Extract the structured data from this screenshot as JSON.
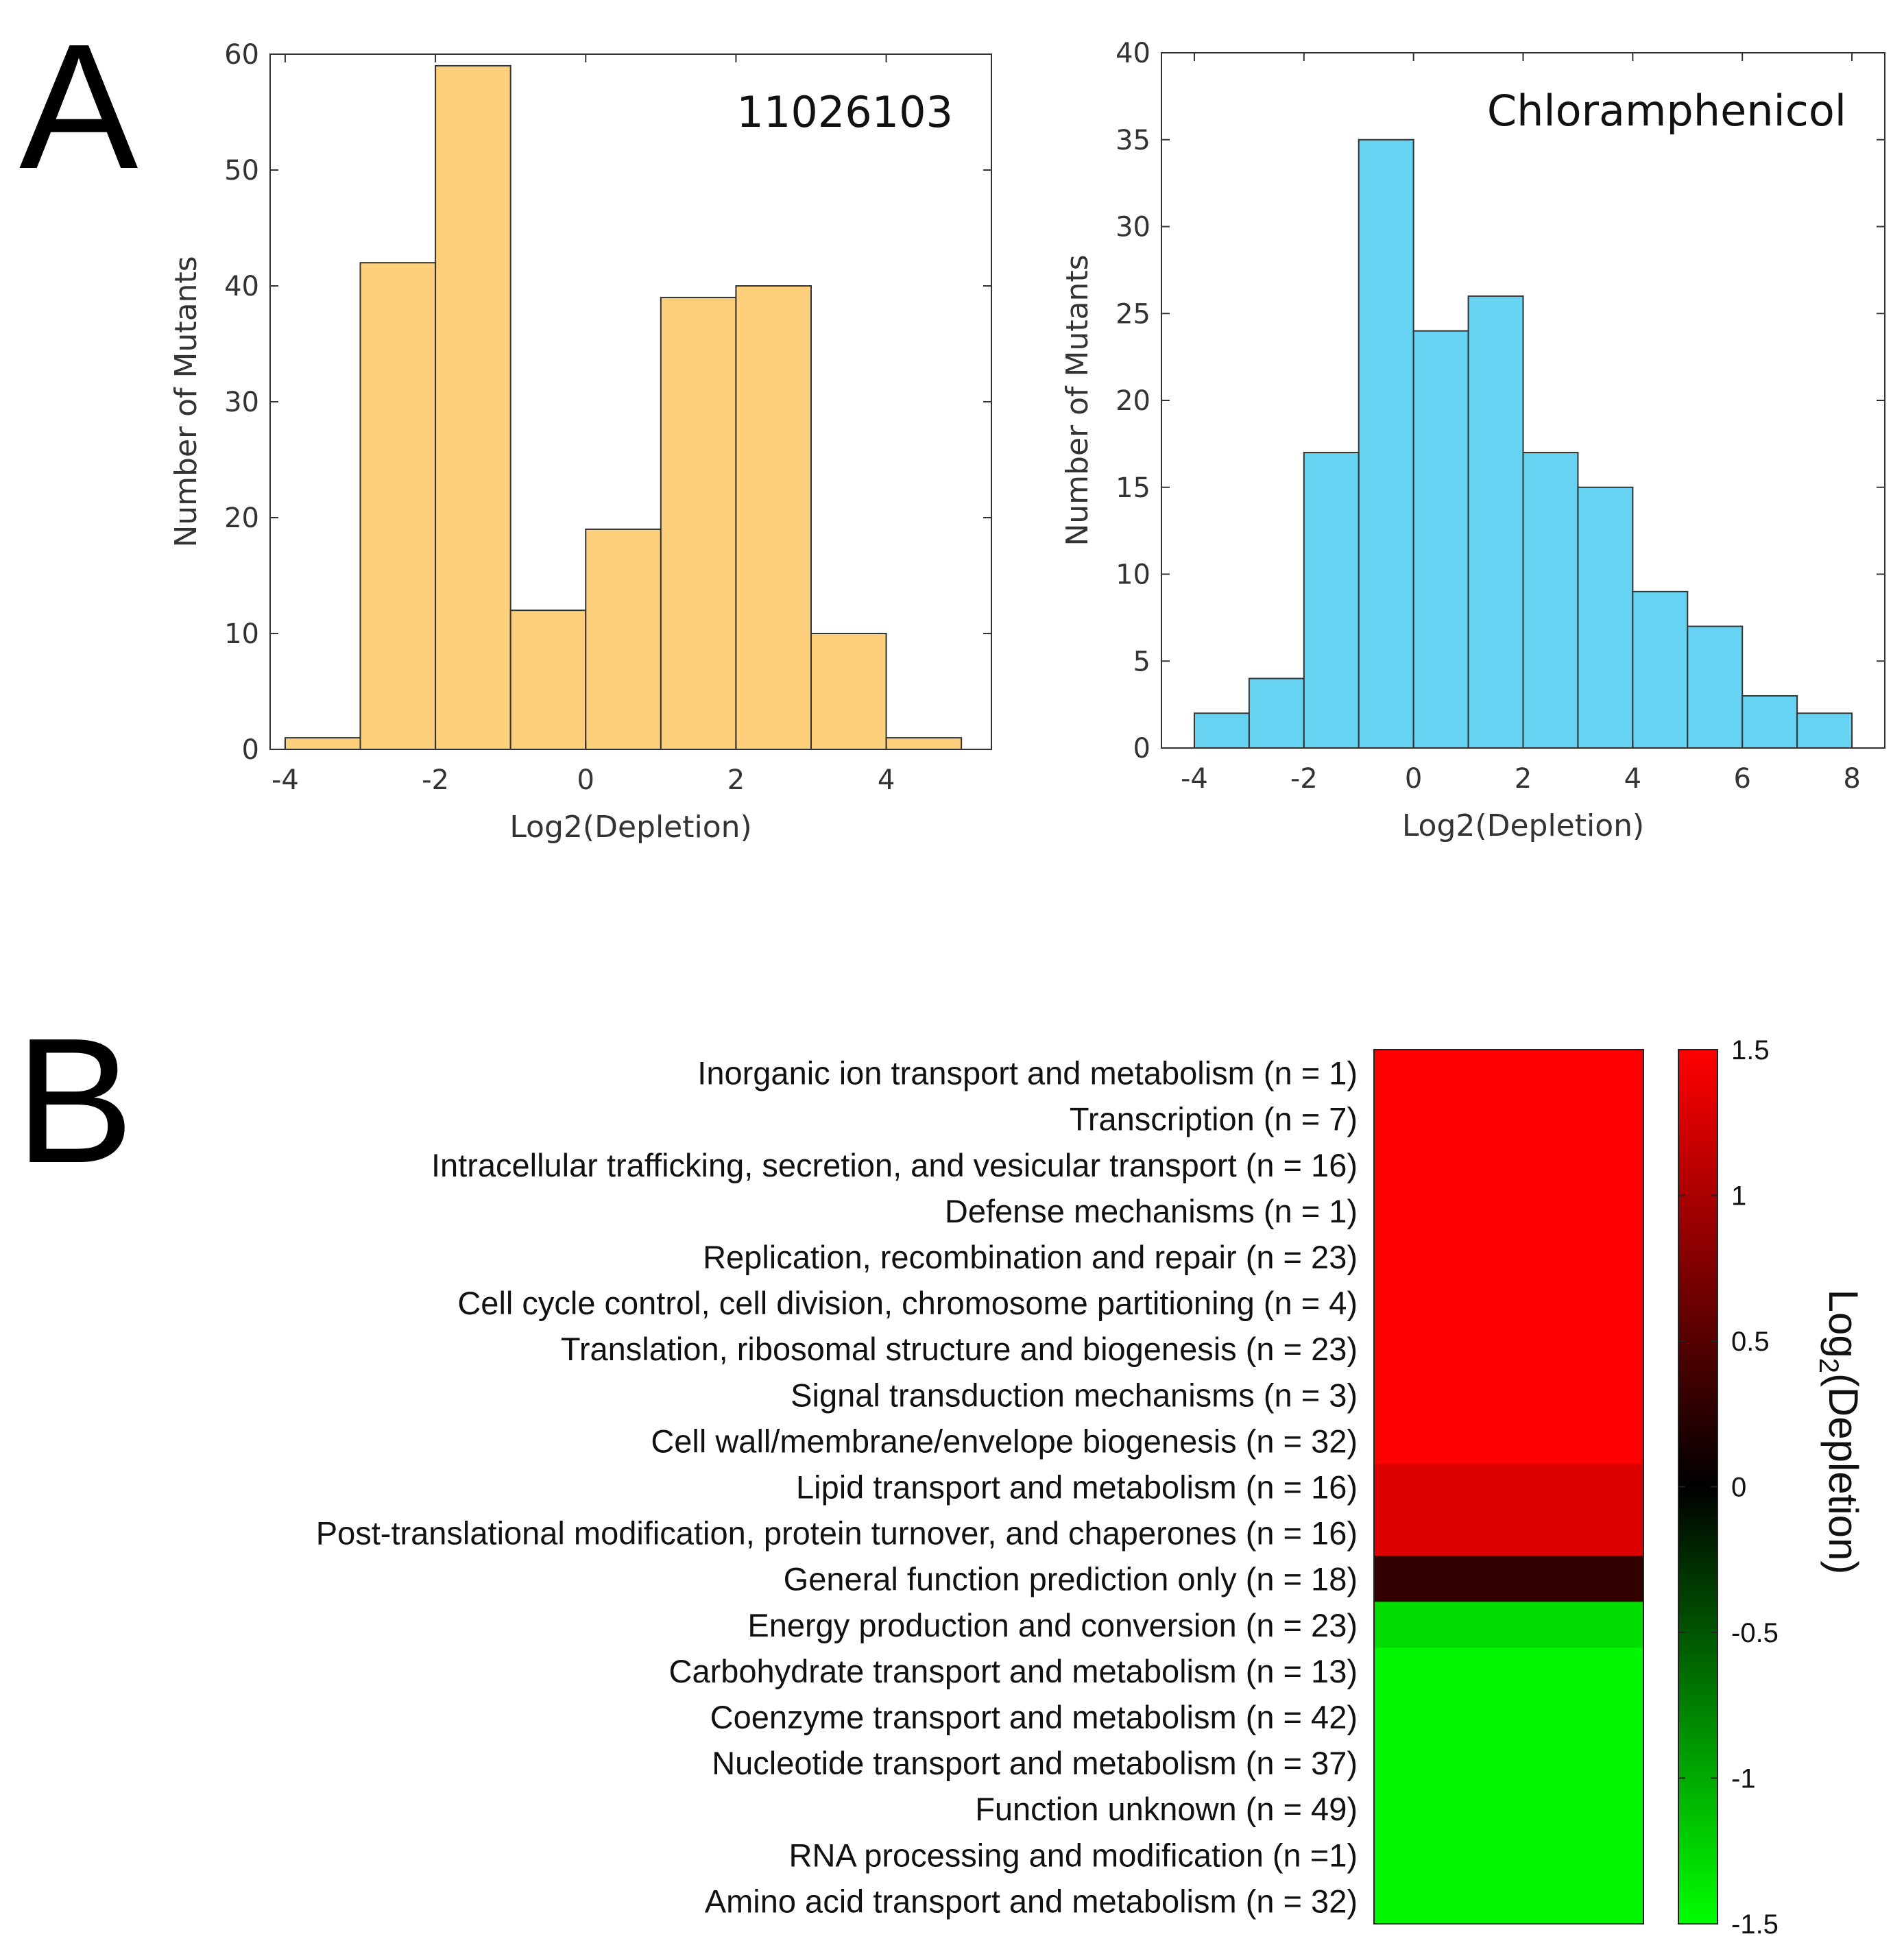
{
  "panels": {
    "a_label": "A",
    "b_label": "B"
  },
  "chart_data": [
    {
      "type": "bar",
      "title": "11026103",
      "xlabel": "Log2(Depletion)",
      "ylabel": "Number of Mutants",
      "xlim": [
        -4.2,
        5.4
      ],
      "ylim": [
        0,
        60
      ],
      "xticks": [
        -4,
        -2,
        0,
        2,
        4
      ],
      "yticks": [
        0,
        10,
        20,
        30,
        40,
        50,
        60
      ],
      "bins": [
        {
          "x0": -4,
          "x1": -3,
          "count": 1
        },
        {
          "x0": -3,
          "x1": -2,
          "count": 42
        },
        {
          "x0": -2,
          "x1": -1,
          "count": 59
        },
        {
          "x0": -1,
          "x1": 0,
          "count": 12
        },
        {
          "x0": 0,
          "x1": 1,
          "count": 19
        },
        {
          "x0": 1,
          "x1": 2,
          "count": 39
        },
        {
          "x0": 2,
          "x1": 3,
          "count": 40
        },
        {
          "x0": 3,
          "x1": 4,
          "count": 10
        },
        {
          "x0": 4,
          "x1": 5,
          "count": 1
        }
      ],
      "color": "#FED07B"
    },
    {
      "type": "bar",
      "title": "Chloramphenicol",
      "xlabel": "Log2(Depletion)",
      "ylabel": "Number of Mutants",
      "xlim": [
        -4.6,
        8.6
      ],
      "ylim": [
        0,
        40
      ],
      "xticks": [
        -4,
        -2,
        0,
        2,
        4,
        6,
        8
      ],
      "yticks": [
        0,
        5,
        10,
        15,
        20,
        25,
        30,
        35,
        40
      ],
      "bins": [
        {
          "x0": -4,
          "x1": -3,
          "count": 2
        },
        {
          "x0": -3,
          "x1": -2,
          "count": 4
        },
        {
          "x0": -2,
          "x1": -1,
          "count": 17
        },
        {
          "x0": -1,
          "x1": 0,
          "count": 35
        },
        {
          "x0": 0,
          "x1": 1,
          "count": 24
        },
        {
          "x0": 1,
          "x1": 2,
          "count": 26
        },
        {
          "x0": 2,
          "x1": 3,
          "count": 17
        },
        {
          "x0": 3,
          "x1": 4,
          "count": 15
        },
        {
          "x0": 4,
          "x1": 5,
          "count": 9
        },
        {
          "x0": 5,
          "x1": 6,
          "count": 7
        },
        {
          "x0": 6,
          "x1": 7,
          "count": 3
        },
        {
          "x0": 7,
          "x1": 8,
          "count": 2
        }
      ],
      "color": "#66D3F3"
    },
    {
      "type": "heatmap",
      "categories": [
        {
          "label": "Inorganic ion transport and metabolism (n = 1)",
          "value": 1.5
        },
        {
          "label": "Transcription (n = 7)",
          "value": 1.5
        },
        {
          "label": "Intracellular trafficking, secretion, and vesicular transport (n = 16)",
          "value": 1.5
        },
        {
          "label": "Defense mechanisms (n = 1)",
          "value": 1.5
        },
        {
          "label": "Replication, recombination and repair (n = 23)",
          "value": 1.5
        },
        {
          "label": "Cell cycle control, cell division, chromosome partitioning (n = 4)",
          "value": 1.5
        },
        {
          "label": "Translation, ribosomal structure and biogenesis (n = 23)",
          "value": 1.5
        },
        {
          "label": "Signal transduction mechanisms (n = 3)",
          "value": 1.5
        },
        {
          "label": "Cell wall/membrane/envelope biogenesis (n = 32)",
          "value": 1.5
        },
        {
          "label": "Lipid transport and metabolism (n = 16)",
          "value": 1.3
        },
        {
          "label": "Post-translational modification, protein turnover, and chaperones (n = 16)",
          "value": 1.3
        },
        {
          "label": "General function prediction only (n = 18)",
          "value": 0.3
        },
        {
          "label": "Energy production and conversion (n = 23)",
          "value": -1.3
        },
        {
          "label": "Carbohydrate transport and metabolism (n = 13)",
          "value": -1.45
        },
        {
          "label": "Coenzyme transport and metabolism (n = 42)",
          "value": -1.45
        },
        {
          "label": "Nucleotide transport and metabolism (n = 37)",
          "value": -1.45
        },
        {
          "label": "Function unknown (n = 49)",
          "value": -1.45
        },
        {
          "label": "RNA processing and modification (n =1)",
          "value": -1.45
        },
        {
          "label": "Amino acid transport and metabolism (n = 32)",
          "value": -1.45
        }
      ],
      "colorbar": {
        "label_main": "Log",
        "label_sub": "2",
        "label_rest": "(Depletion)",
        "min": -1.5,
        "max": 1.5,
        "ticks": [
          "1.5",
          "1",
          "0.5",
          "0",
          "-0.5",
          "-1",
          "-1.5"
        ],
        "tick_values": [
          1.5,
          1,
          0.5,
          0,
          -0.5,
          -1,
          -1.5
        ]
      }
    }
  ]
}
